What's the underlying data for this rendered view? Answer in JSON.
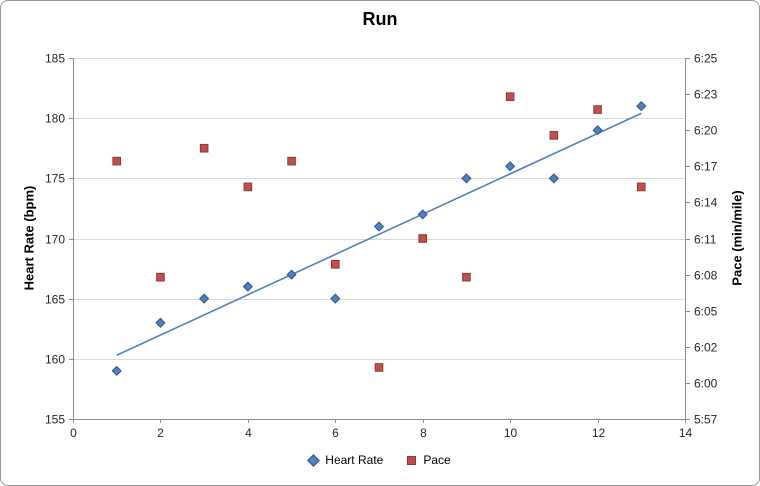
{
  "chart_data": {
    "type": "scatter",
    "title": "Run",
    "xlabel": "",
    "ylabel_left": "Heart Rate (bpm)",
    "ylabel_right": "Pace (min/mile)",
    "xlim": [
      0,
      14
    ],
    "x_ticks": [
      0,
      2,
      4,
      6,
      8,
      10,
      12,
      14
    ],
    "ylim_left": [
      155,
      185
    ],
    "y_left_ticks": [
      155,
      160,
      165,
      170,
      175,
      180,
      185
    ],
    "y_right_tick_labels": [
      "6:25",
      "6:23",
      "6:20",
      "6:17",
      "6:14",
      "6:11",
      "6:08",
      "6:05",
      "6:02",
      "6:00",
      "5:57"
    ],
    "ylim_right_seconds": [
      357,
      385
    ],
    "grid": "horizontal",
    "x": [
      1,
      2,
      3,
      4,
      5,
      6,
      7,
      8,
      9,
      10,
      11,
      12,
      13
    ],
    "series": [
      {
        "name": "Heart Rate",
        "axis": "left",
        "marker": "diamond",
        "color": "#4F81BD",
        "edge": "#31538C",
        "values": [
          159,
          163,
          165,
          166,
          167,
          165,
          171,
          172,
          175,
          176,
          175,
          179,
          181
        ]
      },
      {
        "name": "Pace",
        "axis": "right",
        "marker": "square",
        "color": "#C0504D",
        "edge": "#8C3836",
        "values_mmss": [
          "6:17",
          "6:08",
          "6:18",
          "6:15",
          "6:17",
          "6:09",
          "6:01",
          "6:11",
          "6:08",
          "6:22",
          "6:19",
          "6:21",
          "6:15"
        ],
        "values_seconds": [
          377,
          368,
          378,
          375,
          377,
          369,
          361,
          371,
          368,
          382,
          379,
          381,
          375
        ]
      }
    ],
    "trendline": {
      "series": "Heart Rate",
      "color": "#4F81BD",
      "x_start": 1,
      "x_end": 13,
      "y_start": 160.3,
      "y_end": 180.4
    },
    "legend": {
      "position": "bottom",
      "items": [
        "Heart Rate",
        "Pace"
      ]
    }
  }
}
